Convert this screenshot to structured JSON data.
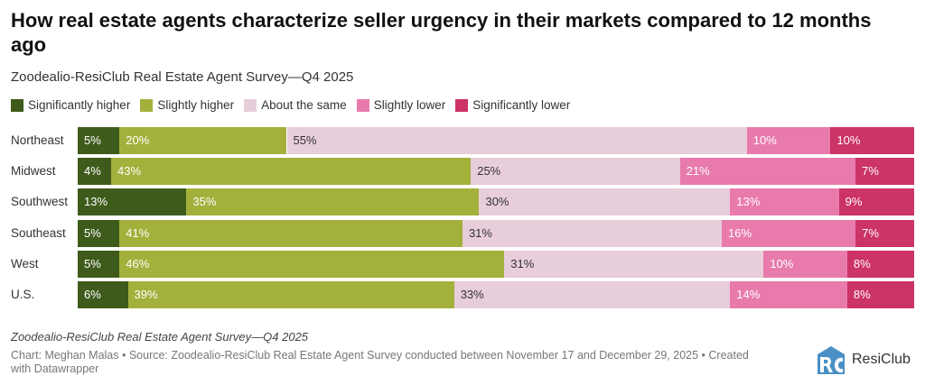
{
  "header": {
    "title": "How real estate agents characterize seller urgency in their markets compared to 12 months ago",
    "subtitle": "Zoodealio-ResiClub Real Estate Agent Survey—Q4 2025"
  },
  "chart_data": {
    "type": "bar",
    "orientation": "horizontal",
    "stacked": true,
    "title": "How real estate agents characterize seller urgency in their markets compared to 12 months ago",
    "subtitle": "Zoodealio-ResiClub Real Estate Agent Survey—Q4 2025",
    "categories": [
      "Northeast",
      "Midwest",
      "Southwest",
      "Southeast",
      "West",
      "U.S."
    ],
    "series": [
      {
        "name": "Significantly higher",
        "color": "#3f5b1c",
        "label_color": "#ffffff",
        "values": [
          5,
          4,
          13,
          5,
          5,
          6
        ]
      },
      {
        "name": "Slightly higher",
        "color": "#a3b03b",
        "label_color": "#ffffff",
        "values": [
          20,
          43,
          35,
          41,
          46,
          39
        ]
      },
      {
        "name": "About the same",
        "color": "#e8cdda",
        "label_color": "#333333",
        "values": [
          55,
          25,
          30,
          31,
          31,
          33
        ]
      },
      {
        "name": "Slightly lower",
        "color": "#e87bac",
        "label_color": "#ffffff",
        "values": [
          10,
          21,
          13,
          16,
          10,
          14
        ]
      },
      {
        "name": "Significantly lower",
        "color": "#cc3366",
        "label_color": "#ffffff",
        "values": [
          10,
          7,
          9,
          7,
          8,
          8
        ]
      }
    ],
    "value_suffix": "%",
    "xlim": [
      0,
      100
    ],
    "legend": "top-left",
    "grid": false
  },
  "footer": {
    "notes": "Zoodealio-ResiClub Real Estate Agent Survey—Q4 2025",
    "byline": "Chart: Meghan Malas • Source: Zoodealio-ResiClub Real Estate Agent Survey conducted between November 17 and December 29, 2025 • Created with Datawrapper",
    "logo_text": "ResiClub",
    "logo_color": "#4a90c4"
  }
}
